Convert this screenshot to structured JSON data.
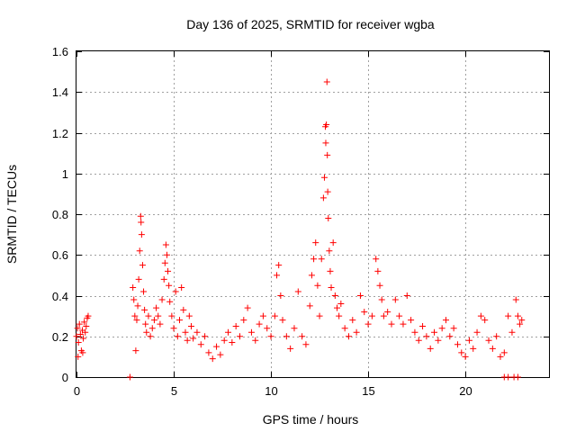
{
  "chart_data": {
    "type": "scatter",
    "title": "Day 136 of 2025, SRMTID for receiver wgba",
    "xlabel": "GPS time / hours",
    "ylabel": "SRMTID / TECUs",
    "xlim": [
      0,
      24.3
    ],
    "ylim": [
      0,
      1.6
    ],
    "xticks": [
      0,
      5,
      10,
      15,
      20
    ],
    "xtick_labels": [
      "0",
      "5",
      "10",
      "15",
      "20"
    ],
    "yticks": [
      0,
      0.2,
      0.4,
      0.6,
      0.8,
      1.0,
      1.2,
      1.4,
      1.6
    ],
    "ytick_labels": [
      "0",
      "0.2",
      "0.4",
      "0.6",
      "0.8",
      "1",
      "1.2",
      "1.4",
      "1.6"
    ],
    "grid": true,
    "marker": "+",
    "color": "#ff0000",
    "series": [
      {
        "name": "SRMTID",
        "points": [
          [
            0.0,
            0.2
          ],
          [
            0.05,
            0.24
          ],
          [
            0.1,
            0.17
          ],
          [
            0.15,
            0.26
          ],
          [
            0.2,
            0.21
          ],
          [
            0.25,
            0.13
          ],
          [
            0.3,
            0.23
          ],
          [
            0.35,
            0.19
          ],
          [
            0.4,
            0.27
          ],
          [
            0.45,
            0.22
          ],
          [
            0.5,
            0.25
          ],
          [
            0.55,
            0.29
          ],
          [
            0.6,
            0.3
          ],
          [
            0.08,
            0.1
          ],
          [
            0.32,
            0.12
          ],
          [
            2.75,
            0.0
          ],
          [
            2.9,
            0.44
          ],
          [
            2.95,
            0.38
          ],
          [
            3.0,
            0.3
          ],
          [
            3.05,
            0.13
          ],
          [
            3.1,
            0.28
          ],
          [
            3.15,
            0.35
          ],
          [
            3.2,
            0.48
          ],
          [
            3.25,
            0.62
          ],
          [
            3.3,
            0.79
          ],
          [
            3.32,
            0.76
          ],
          [
            3.35,
            0.7
          ],
          [
            3.4,
            0.55
          ],
          [
            3.45,
            0.42
          ],
          [
            3.5,
            0.33
          ],
          [
            3.55,
            0.26
          ],
          [
            3.6,
            0.22
          ],
          [
            3.7,
            0.3
          ],
          [
            3.8,
            0.2
          ],
          [
            3.9,
            0.24
          ],
          [
            4.0,
            0.28
          ],
          [
            4.1,
            0.34
          ],
          [
            4.2,
            0.3
          ],
          [
            4.3,
            0.26
          ],
          [
            4.4,
            0.38
          ],
          [
            4.5,
            0.48
          ],
          [
            4.55,
            0.56
          ],
          [
            4.6,
            0.65
          ],
          [
            4.65,
            0.6
          ],
          [
            4.7,
            0.52
          ],
          [
            4.75,
            0.45
          ],
          [
            4.8,
            0.37
          ],
          [
            4.9,
            0.3
          ],
          [
            5.0,
            0.24
          ],
          [
            5.1,
            0.42
          ],
          [
            5.2,
            0.2
          ],
          [
            5.3,
            0.28
          ],
          [
            5.4,
            0.44
          ],
          [
            5.5,
            0.33
          ],
          [
            5.6,
            0.22
          ],
          [
            5.7,
            0.18
          ],
          [
            5.8,
            0.3
          ],
          [
            5.9,
            0.25
          ],
          [
            6.0,
            0.19
          ],
          [
            6.2,
            0.22
          ],
          [
            6.4,
            0.16
          ],
          [
            6.6,
            0.2
          ],
          [
            6.8,
            0.12
          ],
          [
            7.0,
            0.09
          ],
          [
            7.2,
            0.15
          ],
          [
            7.4,
            0.11
          ],
          [
            7.6,
            0.18
          ],
          [
            7.8,
            0.22
          ],
          [
            8.0,
            0.17
          ],
          [
            8.2,
            0.25
          ],
          [
            8.4,
            0.2
          ],
          [
            8.6,
            0.28
          ],
          [
            8.8,
            0.34
          ],
          [
            9.0,
            0.22
          ],
          [
            9.2,
            0.18
          ],
          [
            9.4,
            0.26
          ],
          [
            9.6,
            0.3
          ],
          [
            9.8,
            0.24
          ],
          [
            10.0,
            0.2
          ],
          [
            10.2,
            0.3
          ],
          [
            10.3,
            0.5
          ],
          [
            10.4,
            0.55
          ],
          [
            10.5,
            0.4
          ],
          [
            10.6,
            0.28
          ],
          [
            10.8,
            0.2
          ],
          [
            11.0,
            0.14
          ],
          [
            11.2,
            0.24
          ],
          [
            11.4,
            0.42
          ],
          [
            11.6,
            0.2
          ],
          [
            11.8,
            0.16
          ],
          [
            12.0,
            0.35
          ],
          [
            12.1,
            0.5
          ],
          [
            12.2,
            0.58
          ],
          [
            12.3,
            0.66
          ],
          [
            12.4,
            0.45
          ],
          [
            12.5,
            0.3
          ],
          [
            12.6,
            0.58
          ],
          [
            12.7,
            0.88
          ],
          [
            12.75,
            0.98
          ],
          [
            12.8,
            1.23
          ],
          [
            12.82,
            1.15
          ],
          [
            12.85,
            1.24
          ],
          [
            12.88,
            1.45
          ],
          [
            12.9,
            1.09
          ],
          [
            12.92,
            0.91
          ],
          [
            12.95,
            0.78
          ],
          [
            13.0,
            0.62
          ],
          [
            13.05,
            0.52
          ],
          [
            13.1,
            0.44
          ],
          [
            13.2,
            0.66
          ],
          [
            13.3,
            0.4
          ],
          [
            13.4,
            0.34
          ],
          [
            13.5,
            0.3
          ],
          [
            13.6,
            0.36
          ],
          [
            13.8,
            0.24
          ],
          [
            14.0,
            0.2
          ],
          [
            14.2,
            0.28
          ],
          [
            14.4,
            0.22
          ],
          [
            14.6,
            0.4
          ],
          [
            14.8,
            0.32
          ],
          [
            15.0,
            0.26
          ],
          [
            15.2,
            0.3
          ],
          [
            15.4,
            0.58
          ],
          [
            15.5,
            0.52
          ],
          [
            15.6,
            0.45
          ],
          [
            15.7,
            0.38
          ],
          [
            15.8,
            0.3
          ],
          [
            16.0,
            0.32
          ],
          [
            16.2,
            0.26
          ],
          [
            16.4,
            0.38
          ],
          [
            16.6,
            0.3
          ],
          [
            16.8,
            0.26
          ],
          [
            17.0,
            0.4
          ],
          [
            17.2,
            0.28
          ],
          [
            17.4,
            0.22
          ],
          [
            17.6,
            0.18
          ],
          [
            17.8,
            0.25
          ],
          [
            18.0,
            0.2
          ],
          [
            18.2,
            0.14
          ],
          [
            18.4,
            0.22
          ],
          [
            18.6,
            0.18
          ],
          [
            18.8,
            0.24
          ],
          [
            19.0,
            0.28
          ],
          [
            19.2,
            0.2
          ],
          [
            19.4,
            0.24
          ],
          [
            19.6,
            0.16
          ],
          [
            19.8,
            0.12
          ],
          [
            20.0,
            0.1
          ],
          [
            20.2,
            0.18
          ],
          [
            20.4,
            0.14
          ],
          [
            20.6,
            0.22
          ],
          [
            20.8,
            0.3
          ],
          [
            21.0,
            0.28
          ],
          [
            21.2,
            0.18
          ],
          [
            21.4,
            0.14
          ],
          [
            21.6,
            0.2
          ],
          [
            21.8,
            0.1
          ],
          [
            22.0,
            0.12
          ],
          [
            22.2,
            0.3
          ],
          [
            22.4,
            0.22
          ],
          [
            22.6,
            0.38
          ],
          [
            22.7,
            0.3
          ],
          [
            22.8,
            0.26
          ],
          [
            22.9,
            0.28
          ],
          [
            22.0,
            0.0
          ],
          [
            22.2,
            0.0
          ],
          [
            22.5,
            0.0
          ],
          [
            22.7,
            0.0
          ]
        ]
      }
    ]
  }
}
